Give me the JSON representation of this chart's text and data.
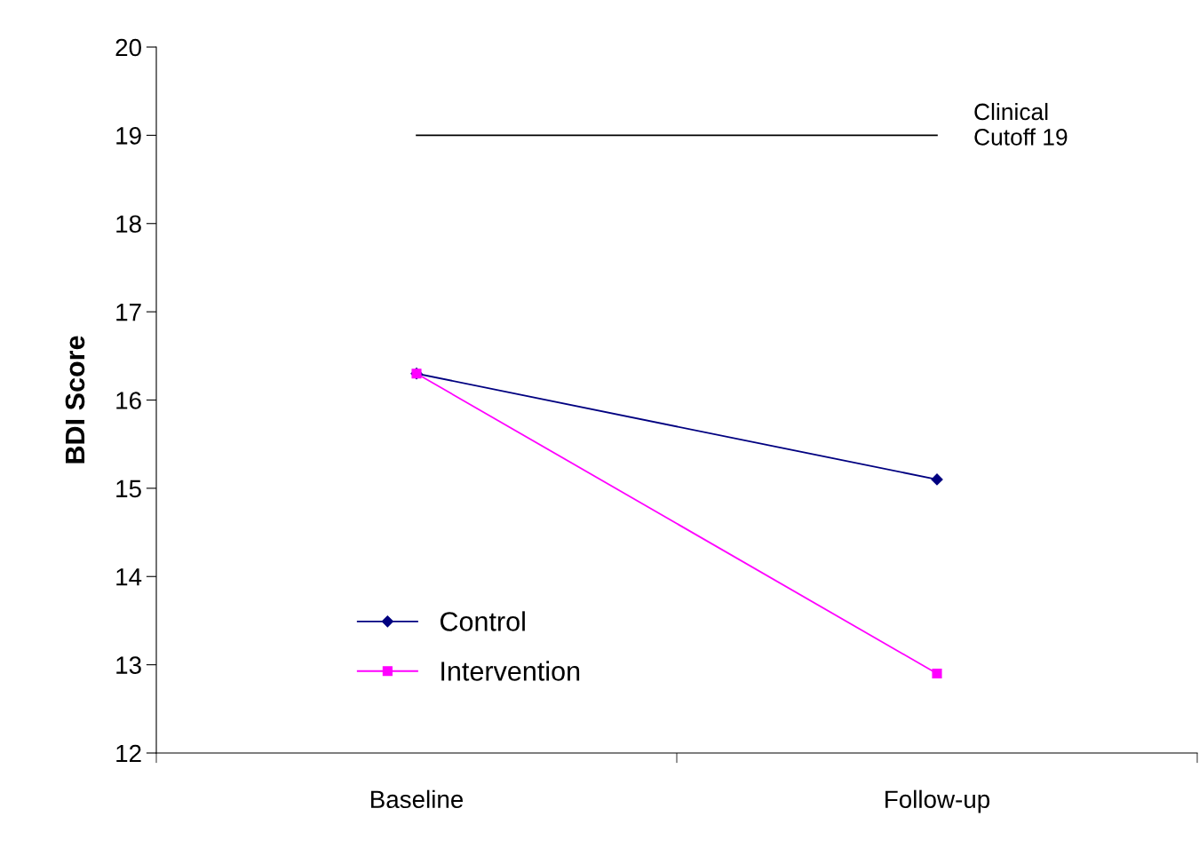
{
  "chart_data": {
    "type": "line",
    "ylabel": "BDI Score",
    "categories": [
      "Baseline",
      "Follow-up"
    ],
    "series": [
      {
        "name": "Control",
        "color": "#000080",
        "marker": "diamond",
        "values": [
          16.3,
          15.1
        ]
      },
      {
        "name": "Intervention",
        "color": "#ff00ff",
        "marker": "square",
        "values": [
          16.3,
          12.9
        ]
      }
    ],
    "ylim": [
      12,
      20
    ],
    "yticks": [
      12,
      13,
      14,
      15,
      16,
      17,
      18,
      19,
      20
    ],
    "ref_lines": [
      {
        "axis": "y",
        "value": 19,
        "label": "Clinical\nCutoff 19",
        "color": "#000000",
        "line_style": "solid"
      }
    ],
    "grid": false,
    "legend": "bottom left",
    "line_style": "solid"
  }
}
